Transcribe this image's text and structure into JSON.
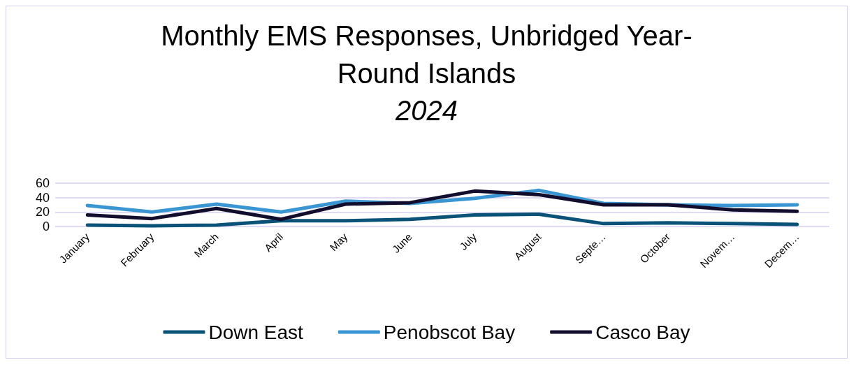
{
  "chart_data": {
    "type": "line",
    "title": "Monthly EMS Responses, Unbridged Year-\nRound Islands",
    "subtitle": "2024",
    "categories": [
      "January",
      "February",
      "March",
      "April",
      "May",
      "June",
      "July",
      "August",
      "Septe…",
      "October",
      "Novem…",
      "Decem…"
    ],
    "series": [
      {
        "name": "Down East",
        "color": "#0b5278",
        "values": [
          2,
          1,
          2,
          8,
          8,
          10,
          16,
          17,
          4,
          5,
          4,
          3
        ]
      },
      {
        "name": "Penobscot Bay",
        "color": "#3a96d2",
        "values": [
          29,
          20,
          31,
          20,
          35,
          32,
          39,
          50,
          32,
          30,
          29,
          30
        ]
      },
      {
        "name": "Casco Bay",
        "color": "#120d2c",
        "values": [
          16,
          11,
          25,
          10,
          31,
          33,
          49,
          44,
          30,
          30,
          23,
          21
        ]
      }
    ],
    "ylim": [
      0,
      60
    ],
    "yticks": [
      0,
      20,
      40,
      60
    ],
    "grid": "y",
    "legend": "bottom",
    "marker": "none",
    "line_style": "solid"
  }
}
